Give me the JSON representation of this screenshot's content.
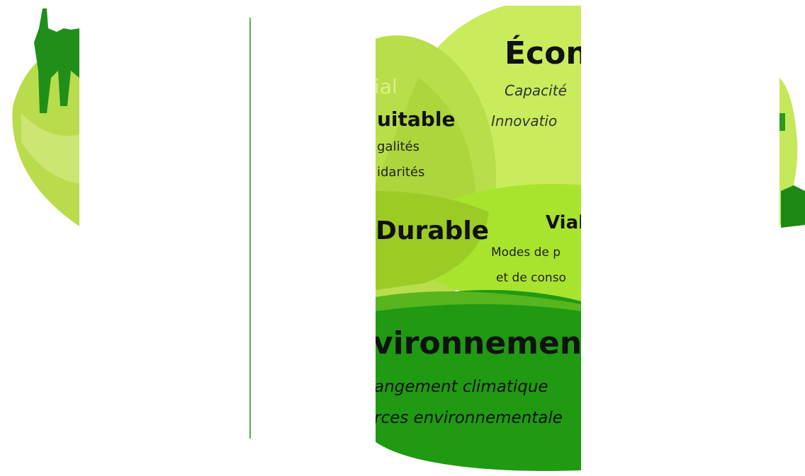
{
  "economic": {
    "title": "Écon",
    "items": [
      "Capacité",
      "Innovatio"
    ]
  },
  "social": {
    "title": "ial",
    "equitable": {
      "title": "uitable",
      "items": [
        "galités",
        "idarités"
      ]
    }
  },
  "durable": {
    "title": "Durable"
  },
  "viable": {
    "title": "Vial",
    "items": [
      "Modes de p",
      "et de conso"
    ]
  },
  "environment": {
    "title": "vironnement",
    "items": [
      "angement climatique",
      "rces environnementale"
    ]
  }
}
